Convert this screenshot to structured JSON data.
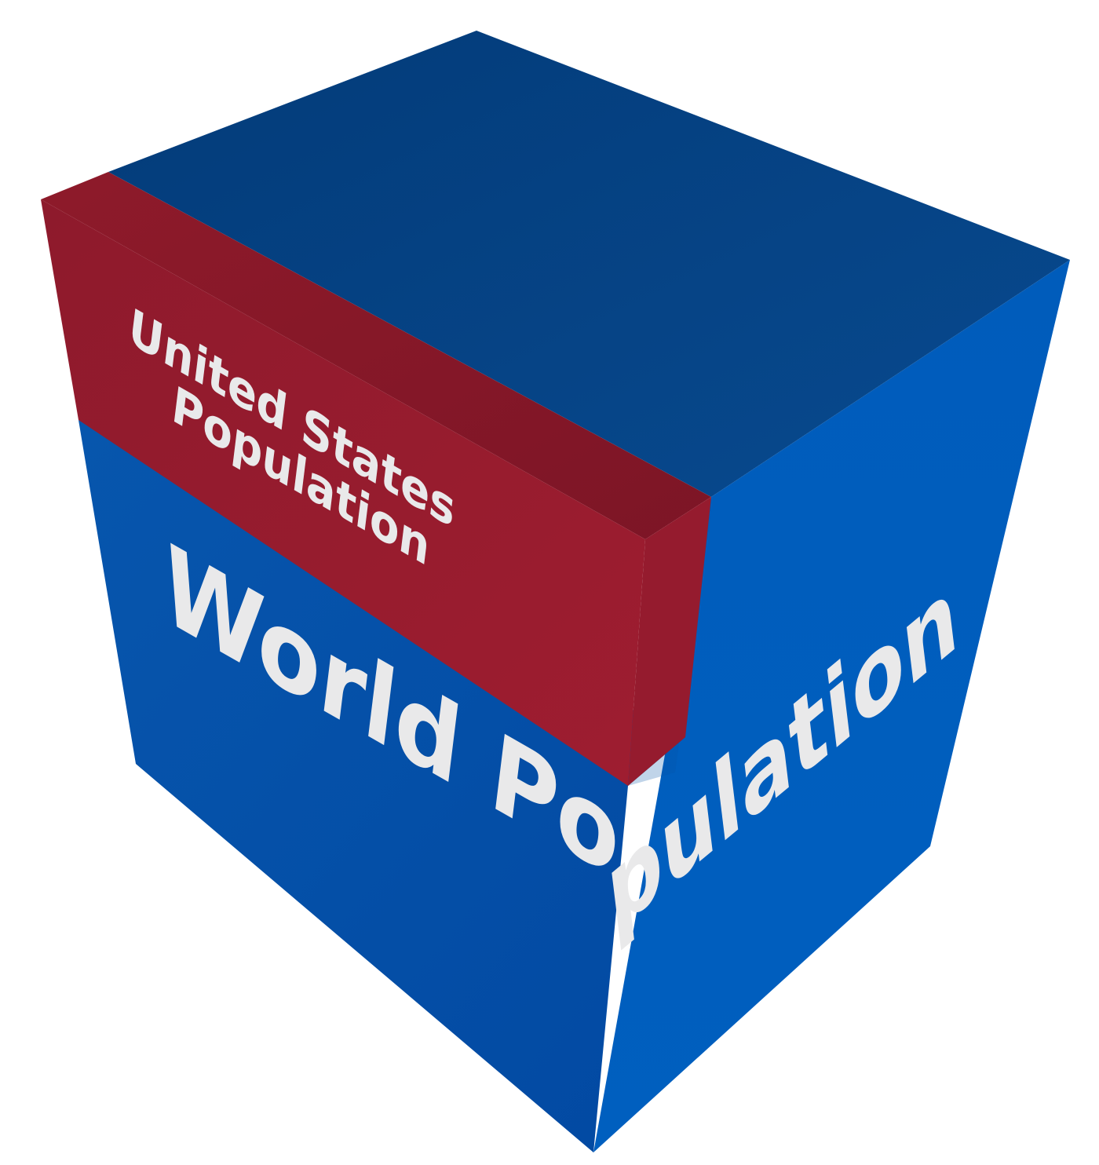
{
  "diagram": {
    "type": "volume-comparison-cube",
    "colors": {
      "world_top": "#063f7d",
      "world_front": "#024e99",
      "world_right": "#005db9",
      "us_top": "#86192a",
      "us_front": "#991c2e",
      "us_side": "#7b1524",
      "text": "#e9e9ea"
    },
    "inner_block": {
      "label_line1": "United States",
      "label_line2": "Population",
      "color": "#991c2e"
    },
    "outer_block": {
      "label_part1": "World Po",
      "label_part2": "pulation",
      "color": "#005db9"
    }
  }
}
